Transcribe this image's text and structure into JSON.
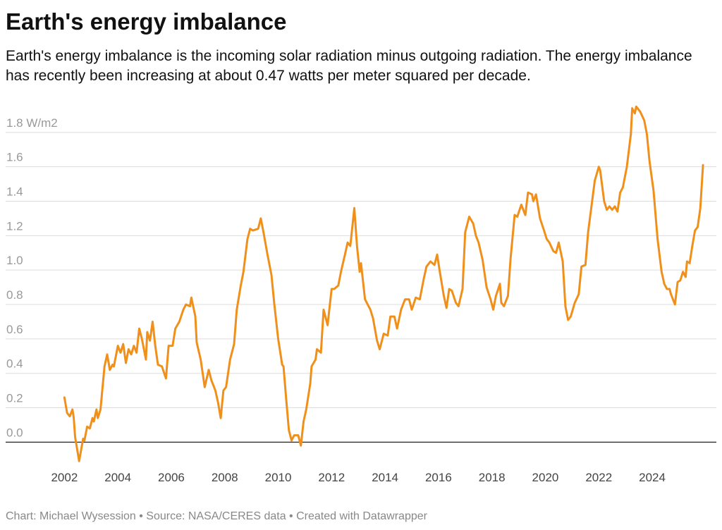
{
  "chart_data": {
    "type": "line",
    "title": "Earth's energy imbalance",
    "subtitle": "Earth's energy imbalance is the incoming solar radiation minus outgoing radiation. The energy imbalance has recently been increasing at about 0.47 watts per meter squared per decade.",
    "source": "Chart: Michael Wysession • Source: NASA/CERES data • Created with Datawrapper",
    "color": "#f0901a",
    "grid": true,
    "xlim": [
      1999.8,
      2026.4
    ],
    "xticks": [
      2002,
      2004,
      2006,
      2008,
      2010,
      2012,
      2014,
      2016,
      2018,
      2020,
      2022,
      2024
    ],
    "ylim": [
      -0.15,
      2.0
    ],
    "yticks": [
      {
        "value": 0,
        "label": "0.0"
      },
      0.2,
      0.4,
      0.6,
      0.8,
      {
        "value": 1,
        "label": "1.0"
      },
      1.2,
      1.4,
      1.6,
      {
        "value": 1.8,
        "label": "1.8 W/m2"
      }
    ],
    "x": [
      2002.0,
      2002.1,
      2002.2,
      2002.3,
      2002.35,
      2002.4,
      2002.55,
      2002.7,
      2002.75,
      2002.85,
      2002.95,
      2003.05,
      2003.1,
      2003.2,
      2003.25,
      2003.35,
      2003.5,
      2003.6,
      2003.7,
      2003.8,
      2003.85,
      2004.0,
      2004.1,
      2004.2,
      2004.3,
      2004.4,
      2004.5,
      2004.6,
      2004.7,
      2004.8,
      2004.9,
      2005.05,
      2005.1,
      2005.2,
      2005.3,
      2005.4,
      2005.5,
      2005.65,
      2005.8,
      2005.9,
      2006.05,
      2006.15,
      2006.3,
      2006.45,
      2006.55,
      2006.7,
      2006.75,
      2006.9,
      2006.95,
      2007.1,
      2007.25,
      2007.4,
      2007.5,
      2007.65,
      2007.75,
      2007.85,
      2007.95,
      2008.05,
      2008.2,
      2008.35,
      2008.45,
      2008.6,
      2008.7,
      2008.85,
      2008.95,
      2009.05,
      2009.25,
      2009.35,
      2009.45,
      2009.6,
      2009.75,
      2009.85,
      2010.0,
      2010.15,
      2010.2,
      2010.3,
      2010.4,
      2010.5,
      2010.6,
      2010.75,
      2010.85,
      2010.95,
      2011.05,
      2011.2,
      2011.25,
      2011.4,
      2011.45,
      2011.6,
      2011.7,
      2011.85,
      2012.0,
      2012.1,
      2012.25,
      2012.35,
      2012.5,
      2012.6,
      2012.7,
      2012.85,
      2012.95,
      2013.05,
      2013.1,
      2013.25,
      2013.45,
      2013.55,
      2013.7,
      2013.8,
      2013.95,
      2014.1,
      2014.2,
      2014.35,
      2014.45,
      2014.6,
      2014.75,
      2014.9,
      2015.0,
      2015.15,
      2015.3,
      2015.45,
      2015.55,
      2015.7,
      2015.85,
      2015.95,
      2016.05,
      2016.2,
      2016.3,
      2016.4,
      2016.5,
      2016.65,
      2016.75,
      2016.9,
      2017.0,
      2017.15,
      2017.3,
      2017.4,
      2017.5,
      2017.65,
      2017.8,
      2017.95,
      2018.05,
      2018.15,
      2018.3,
      2018.35,
      2018.45,
      2018.6,
      2018.7,
      2018.85,
      2018.95,
      2019.1,
      2019.25,
      2019.35,
      2019.5,
      2019.55,
      2019.65,
      2019.8,
      2019.95,
      2020.05,
      2020.15,
      2020.3,
      2020.4,
      2020.5,
      2020.65,
      2020.75,
      2020.85,
      2020.95,
      2021.1,
      2021.25,
      2021.35,
      2021.5,
      2021.6,
      2021.75,
      2021.85,
      2022.0,
      2022.05,
      2022.2,
      2022.3,
      2022.4,
      2022.5,
      2022.6,
      2022.7,
      2022.8,
      2022.9,
      2023.05,
      2023.2,
      2023.25,
      2023.35,
      2023.4,
      2023.55,
      2023.7,
      2023.8,
      2023.9,
      2024.05,
      2024.2,
      2024.35,
      2024.45,
      2024.55,
      2024.65,
      2024.7,
      2024.85,
      2024.95,
      2025.05,
      2025.15,
      2025.25,
      2025.3,
      2025.4,
      2025.5,
      2025.6,
      2025.7,
      2025.8,
      2025.9
    ],
    "values": [
      0.26,
      0.17,
      0.15,
      0.19,
      0.14,
      0.03,
      -0.11,
      0.02,
      0.01,
      0.09,
      0.08,
      0.14,
      0.12,
      0.19,
      0.14,
      0.19,
      0.44,
      0.51,
      0.42,
      0.45,
      0.44,
      0.56,
      0.52,
      0.57,
      0.46,
      0.54,
      0.51,
      0.56,
      0.52,
      0.66,
      0.6,
      0.48,
      0.64,
      0.59,
      0.7,
      0.56,
      0.45,
      0.44,
      0.37,
      0.56,
      0.56,
      0.66,
      0.7,
      0.77,
      0.8,
      0.79,
      0.84,
      0.73,
      0.58,
      0.48,
      0.32,
      0.42,
      0.36,
      0.3,
      0.23,
      0.14,
      0.3,
      0.32,
      0.48,
      0.57,
      0.77,
      0.91,
      0.99,
      1.18,
      1.24,
      1.23,
      1.24,
      1.3,
      1.22,
      1.09,
      0.97,
      0.81,
      0.6,
      0.45,
      0.44,
      0.25,
      0.07,
      0.01,
      0.04,
      0.04,
      -0.02,
      0.12,
      0.19,
      0.34,
      0.44,
      0.48,
      0.54,
      0.52,
      0.77,
      0.68,
      0.89,
      0.89,
      0.91,
      0.99,
      1.09,
      1.16,
      1.14,
      1.36,
      1.14,
      0.99,
      1.04,
      0.83,
      0.77,
      0.72,
      0.59,
      0.54,
      0.63,
      0.62,
      0.73,
      0.73,
      0.66,
      0.77,
      0.83,
      0.83,
      0.77,
      0.84,
      0.83,
      0.95,
      1.02,
      1.05,
      1.03,
      1.09,
      0.99,
      0.85,
      0.78,
      0.89,
      0.88,
      0.81,
      0.79,
      0.89,
      1.22,
      1.31,
      1.27,
      1.2,
      1.16,
      1.06,
      0.9,
      0.83,
      0.77,
      0.85,
      0.92,
      0.81,
      0.79,
      0.85,
      1.07,
      1.32,
      1.31,
      1.38,
      1.32,
      1.45,
      1.44,
      1.4,
      1.44,
      1.3,
      1.23,
      1.18,
      1.16,
      1.11,
      1.1,
      1.16,
      1.05,
      0.79,
      0.71,
      0.73,
      0.81,
      0.86,
      1.02,
      1.03,
      1.22,
      1.4,
      1.52,
      1.6,
      1.58,
      1.4,
      1.35,
      1.37,
      1.35,
      1.37,
      1.34,
      1.45,
      1.48,
      1.6,
      1.79,
      1.94,
      1.91,
      1.95,
      1.92,
      1.87,
      1.79,
      1.63,
      1.46,
      1.18,
      0.99,
      0.92,
      0.89,
      0.89,
      0.86,
      0.8,
      0.93,
      0.94,
      0.99,
      0.96,
      1.05,
      1.04,
      1.14,
      1.23,
      1.25,
      1.36,
      1.61
    ]
  }
}
